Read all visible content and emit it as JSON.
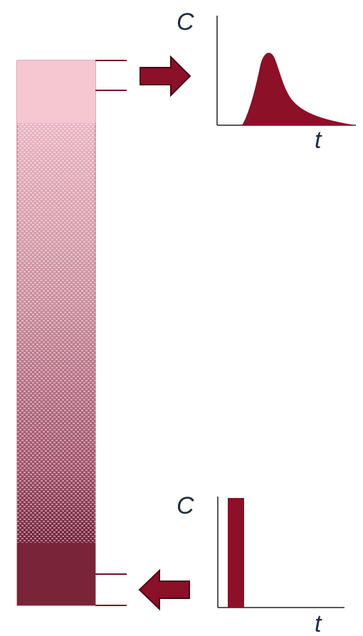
{
  "colors": {
    "accent": "#8b1028",
    "column_top": "#f6c2cc",
    "column_bottom": "#7a2438",
    "tube": "#7a1024",
    "axis": "#222222"
  },
  "top_plot": {
    "y_label": "C",
    "x_label": "t",
    "curve": "skewed-peak"
  },
  "bottom_plot": {
    "y_label": "C",
    "x_label": "t",
    "curve": "rectangular-pulse"
  },
  "arrows": {
    "top": "arrow-right-icon",
    "bottom": "arrow-left-icon"
  }
}
